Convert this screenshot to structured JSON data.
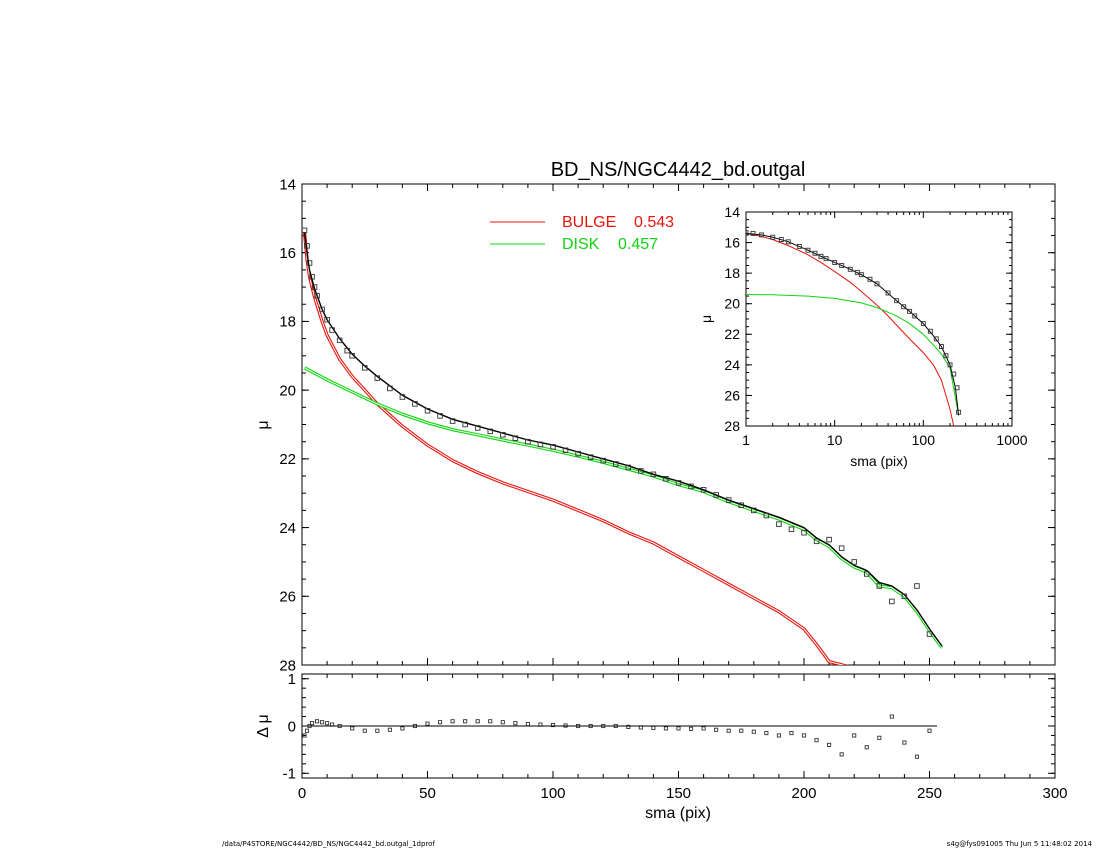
{
  "chart_data": [
    {
      "id": "main",
      "type": "line",
      "title": "BD_NS/NGC4442_bd.outgal",
      "xlabel": "",
      "ylabel": "μ",
      "xlim": [
        0,
        300
      ],
      "ylim": [
        28,
        14
      ],
      "y_inverted": true,
      "xticks": [
        0,
        50,
        100,
        150,
        200,
        250,
        300
      ],
      "xticklabels": [],
      "yticks": [
        14,
        16,
        18,
        20,
        22,
        24,
        26,
        28
      ],
      "yticklabels": [
        "14",
        "16",
        "18",
        "20",
        "22",
        "24",
        "26",
        "28"
      ],
      "legend": {
        "placement": "top-center",
        "entries": [
          {
            "label": "BULGE",
            "value": "0.543",
            "color": "#e8140c"
          },
          {
            "label": "DISK",
            "value": "0.457",
            "color": "#10d410"
          }
        ]
      },
      "series": [
        {
          "name": "BULGE",
          "kind": "line",
          "color": "#e8140c",
          "x": [
            1,
            2,
            3,
            5,
            8,
            10,
            15,
            20,
            25,
            30,
            40,
            50,
            60,
            70,
            80,
            90,
            100,
            110,
            120,
            130,
            140,
            150,
            160,
            170,
            180,
            190,
            200,
            205,
            210,
            218
          ],
          "y": [
            15.4,
            16.2,
            16.7,
            17.3,
            18.0,
            18.4,
            19.1,
            19.6,
            20.0,
            20.4,
            21.05,
            21.6,
            22.05,
            22.4,
            22.7,
            22.95,
            23.2,
            23.5,
            23.8,
            24.15,
            24.45,
            24.85,
            25.25,
            25.65,
            26.05,
            26.45,
            26.95,
            27.4,
            27.9,
            28.05
          ]
        },
        {
          "name": "DISK",
          "kind": "line",
          "color": "#10d410",
          "x": [
            1,
            10,
            20,
            30,
            40,
            50,
            60,
            70,
            80,
            90,
            100,
            110,
            120,
            130,
            140,
            150,
            160,
            170,
            180,
            190,
            200,
            205,
            210,
            215,
            220,
            225,
            230,
            235,
            240,
            245,
            250,
            255
          ],
          "y": [
            19.35,
            19.7,
            20.05,
            20.4,
            20.7,
            20.95,
            21.15,
            21.3,
            21.45,
            21.6,
            21.75,
            21.92,
            22.1,
            22.3,
            22.5,
            22.75,
            22.95,
            23.25,
            23.5,
            23.75,
            24.05,
            24.35,
            24.55,
            24.9,
            25.15,
            25.3,
            25.7,
            25.75,
            26.0,
            26.45,
            27.0,
            27.5
          ]
        },
        {
          "name": "",
          "kind": "line",
          "color": "#000000",
          "x": [
            1,
            2,
            3,
            5,
            8,
            10,
            15,
            20,
            25,
            30,
            40,
            50,
            60,
            70,
            80,
            90,
            100,
            110,
            120,
            130,
            140,
            150,
            160,
            170,
            180,
            190,
            200,
            205,
            210,
            215,
            220,
            225,
            230,
            235,
            240,
            245,
            250,
            255
          ],
          "y": [
            15.4,
            16.0,
            16.5,
            17.05,
            17.65,
            17.95,
            18.5,
            18.95,
            19.3,
            19.6,
            20.15,
            20.55,
            20.85,
            21.05,
            21.25,
            21.45,
            21.6,
            21.8,
            22.0,
            22.2,
            22.45,
            22.65,
            22.9,
            23.2,
            23.45,
            23.7,
            24.0,
            24.3,
            24.5,
            24.85,
            25.1,
            25.25,
            25.6,
            25.7,
            25.95,
            26.4,
            26.95,
            27.45
          ]
        },
        {
          "name": "",
          "kind": "points",
          "color": "#333333",
          "x": [
            1,
            2,
            3,
            4,
            5,
            6,
            8,
            10,
            12,
            15,
            18,
            20,
            25,
            30,
            35,
            40,
            45,
            50,
            55,
            60,
            65,
            70,
            75,
            80,
            85,
            90,
            95,
            100,
            105,
            110,
            115,
            120,
            125,
            130,
            135,
            140,
            145,
            150,
            155,
            160,
            165,
            170,
            175,
            180,
            185,
            190,
            195,
            200,
            205,
            210,
            215,
            220,
            225,
            230,
            235,
            240,
            245,
            250
          ],
          "y": [
            15.35,
            15.8,
            16.3,
            16.7,
            17.0,
            17.25,
            17.65,
            17.95,
            18.25,
            18.55,
            18.85,
            19.0,
            19.35,
            19.65,
            19.95,
            20.2,
            20.4,
            20.6,
            20.75,
            20.9,
            21.0,
            21.1,
            21.2,
            21.3,
            21.4,
            21.5,
            21.58,
            21.65,
            21.75,
            21.85,
            21.95,
            22.05,
            22.15,
            22.25,
            22.35,
            22.45,
            22.58,
            22.7,
            22.8,
            22.9,
            23.05,
            23.2,
            23.35,
            23.5,
            23.65,
            23.9,
            24.05,
            24.15,
            24.4,
            24.35,
            24.6,
            25.0,
            25.35,
            25.7,
            26.15,
            26.0,
            25.7,
            27.1
          ]
        }
      ]
    },
    {
      "id": "residual",
      "type": "scatter",
      "title": "",
      "xlabel": "sma (pix)",
      "ylabel": "Δ μ",
      "xlim": [
        0,
        300
      ],
      "ylim": [
        -1.1,
        1.1
      ],
      "xticks": [
        0,
        50,
        100,
        150,
        200,
        250,
        300
      ],
      "xticklabels": [
        "0",
        "50",
        "100",
        "150",
        "200",
        "250",
        "300"
      ],
      "yticks": [
        -1,
        0,
        1
      ],
      "yticklabels": [
        "-1",
        "0",
        "1"
      ],
      "series": [
        {
          "name": "",
          "kind": "points",
          "x": [
            1,
            2,
            3,
            4,
            6,
            8,
            10,
            12,
            15,
            20,
            25,
            30,
            35,
            40,
            45,
            50,
            55,
            60,
            65,
            70,
            75,
            80,
            85,
            90,
            95,
            100,
            105,
            110,
            115,
            120,
            125,
            130,
            135,
            140,
            145,
            150,
            155,
            160,
            165,
            170,
            175,
            180,
            185,
            190,
            195,
            200,
            205,
            210,
            215,
            220,
            225,
            230,
            235,
            240,
            245,
            250
          ],
          "y": [
            -0.2,
            -0.1,
            0.0,
            0.06,
            0.1,
            0.08,
            0.06,
            0.03,
            0.0,
            -0.05,
            -0.1,
            -0.1,
            -0.08,
            -0.05,
            0.0,
            0.05,
            0.08,
            0.1,
            0.1,
            0.1,
            0.1,
            0.08,
            0.06,
            0.04,
            0.03,
            0.02,
            0.01,
            0.0,
            0.0,
            0.0,
            0.0,
            -0.02,
            -0.03,
            -0.04,
            -0.05,
            -0.05,
            -0.06,
            -0.05,
            -0.08,
            -0.1,
            -0.1,
            -0.12,
            -0.15,
            -0.2,
            -0.15,
            -0.2,
            -0.3,
            -0.4,
            -0.6,
            -0.2,
            -0.45,
            -0.25,
            0.2,
            -0.35,
            -0.65,
            -0.1
          ]
        },
        {
          "name": "",
          "kind": "line",
          "x": [
            0,
            253
          ],
          "y": [
            0,
            0
          ]
        }
      ]
    },
    {
      "id": "inset",
      "type": "line",
      "title": "",
      "xlabel": "sma (pix)",
      "ylabel": "μ",
      "xscale": "log",
      "xlim": [
        1,
        1000
      ],
      "ylim": [
        28,
        14
      ],
      "y_inverted": true,
      "xticks": [
        1,
        10,
        100,
        1000
      ],
      "xticklabels": [
        "1",
        "10",
        "100",
        "1000"
      ],
      "yticks": [
        14,
        16,
        18,
        20,
        22,
        24,
        26,
        28
      ],
      "yticklabels": [
        "14",
        "16",
        "18",
        "20",
        "22",
        "24",
        "26",
        "28"
      ],
      "series": [
        {
          "name": "",
          "kind": "line",
          "color": "#e8140c",
          "x": [
            1,
            1.5,
            2,
            3,
            5,
            7,
            10,
            15,
            20,
            30,
            40,
            50,
            70,
            100,
            130,
            160,
            200,
            220
          ],
          "y": [
            15.4,
            15.6,
            15.8,
            16.2,
            16.8,
            17.3,
            17.9,
            18.6,
            19.2,
            20.1,
            20.8,
            21.4,
            22.3,
            23.2,
            24.0,
            25.0,
            26.9,
            28.0
          ]
        },
        {
          "name": "",
          "kind": "line",
          "color": "#10d410",
          "x": [
            1,
            2,
            5,
            10,
            20,
            30,
            50,
            70,
            100,
            130,
            160,
            200,
            250
          ],
          "y": [
            19.4,
            19.42,
            19.5,
            19.65,
            19.95,
            20.25,
            20.8,
            21.3,
            22.0,
            22.7,
            23.3,
            24.2,
            27.3
          ]
        },
        {
          "name": "",
          "kind": "line",
          "color": "#000000",
          "x": [
            1,
            1.5,
            2,
            3,
            5,
            7,
            10,
            15,
            20,
            30,
            50,
            70,
            100,
            130,
            160,
            200,
            230,
            250
          ],
          "y": [
            15.4,
            15.5,
            15.65,
            15.95,
            16.5,
            16.9,
            17.3,
            17.75,
            18.1,
            18.7,
            19.8,
            20.5,
            21.3,
            22.1,
            22.8,
            24.0,
            25.5,
            27.3
          ]
        },
        {
          "name": "",
          "kind": "points",
          "x": [
            1,
            1.2,
            1.5,
            2,
            2.5,
            3,
            4,
            5,
            6,
            7,
            8,
            10,
            12,
            15,
            18,
            20,
            25,
            30,
            40,
            50,
            60,
            70,
            80,
            100,
            120,
            140,
            160,
            180,
            200,
            220,
            240,
            250
          ],
          "y": [
            15.35,
            15.4,
            15.5,
            15.65,
            15.8,
            15.95,
            16.25,
            16.5,
            16.7,
            16.9,
            17.05,
            17.3,
            17.5,
            17.75,
            17.95,
            18.1,
            18.4,
            18.7,
            19.3,
            19.8,
            20.2,
            20.5,
            20.8,
            21.3,
            21.8,
            22.3,
            22.8,
            23.4,
            24.0,
            24.6,
            25.5,
            27.1
          ]
        }
      ]
    }
  ],
  "footer": {
    "left": "/data/P4STORE/NGC4442/BD_NS/NGC4442_bd.outgal_1dprof",
    "right": "s4g@fys091005  Thu Jun  5 11:48:02 2014"
  }
}
